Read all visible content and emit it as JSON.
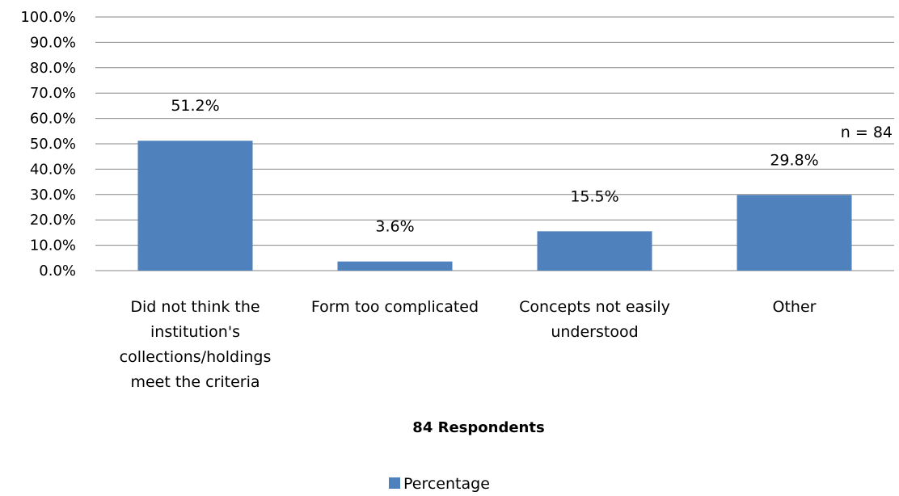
{
  "chart_data": {
    "type": "bar",
    "categories": [
      [
        "Did not think the",
        "institution's",
        "collections/holdings",
        "meet the criteria"
      ],
      [
        "Form too complicated"
      ],
      [
        "Concepts not easily",
        "understood"
      ],
      [
        "Other"
      ]
    ],
    "series": [
      {
        "name": "Percentage",
        "values": [
          51.2,
          3.6,
          15.5,
          29.8
        ],
        "value_labels": [
          "51.2%",
          "3.6%",
          "15.5%",
          "29.8%"
        ],
        "color": "#4F81BD"
      }
    ],
    "xlabel": "84 Respondents",
    "ylabel": "",
    "ylim": [
      0,
      100
    ],
    "yticks": [
      "0.0%",
      "10.0%",
      "20.0%",
      "30.0%",
      "40.0%",
      "50.0%",
      "60.0%",
      "70.0%",
      "80.0%",
      "90.0%",
      "100.0%"
    ],
    "annotation": "n = 84",
    "grid": true,
    "legend_position": "bottom",
    "gridline_color": "#868686"
  }
}
